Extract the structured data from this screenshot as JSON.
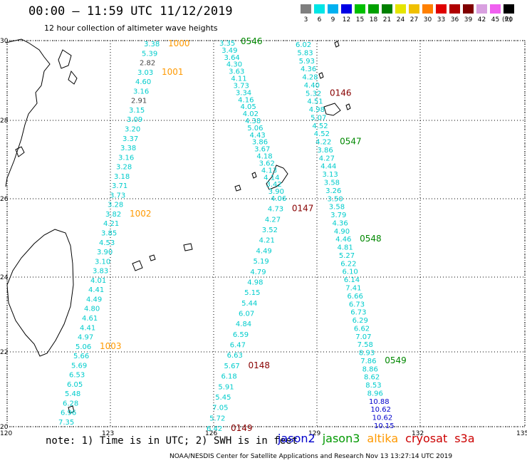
{
  "header": {
    "title": "00:00 — 11:59 UTC 11/12/2019",
    "subtitle": "12 hour collection of altimeter wave heights"
  },
  "color_scale": {
    "labels": [
      "3",
      "6",
      "9",
      "12",
      "15",
      "18",
      "21",
      "24",
      "27",
      "30",
      "33",
      "36",
      "39",
      "42",
      "45",
      "70"
    ],
    "colors": [
      "#7f7f7f",
      "#00e5e5",
      "#00b0f0",
      "#0000e5",
      "#00c000",
      "#00a000",
      "#008000",
      "#e5e500",
      "#f0c000",
      "#ff8000",
      "#e00000",
      "#b00000",
      "#800000",
      "#d9a0e0",
      "#f060f0",
      "#000000"
    ],
    "unit": "(ft)"
  },
  "axes": {
    "lat_labels": [
      "30",
      "28",
      "26",
      "24",
      "22",
      "20"
    ],
    "lon_labels": [
      "120",
      "123",
      "126",
      "129",
      "132",
      "135"
    ]
  },
  "tracks": [
    {
      "satellite": "altika",
      "color": "#00cccc",
      "values": [
        "3.38",
        "5.39",
        "2.82",
        "3.03",
        "4.60",
        "3.16",
        "2.91",
        "3.15",
        "3.09",
        "3.20",
        "3.37",
        "3.38",
        "3.16",
        "3.28",
        "3.18",
        "3.71",
        "3.73",
        "3.28",
        "3.82",
        "4.21",
        "3.85",
        "4.53",
        "3.90",
        "3.10",
        "3.83",
        "4.01",
        "4.41",
        "4.49",
        "4.80",
        "4.61",
        "4.41",
        "4.97",
        "5.06",
        "5.66",
        "5.69",
        "6.53",
        "6.05",
        "5.48",
        "6.28",
        "6.96",
        "7.35"
      ],
      "time_labels": [
        {
          "text": "1000",
          "at": 0
        },
        {
          "text": "1001",
          "at": 3
        },
        {
          "text": "1002",
          "at": 18
        },
        {
          "text": "1003",
          "at": 32
        }
      ],
      "time_color": "#ff9900"
    },
    {
      "satellite": "cryosat",
      "color": "#00cccc",
      "values": [
        "3.35",
        "3.49",
        "3.64",
        "4.30",
        "3.63",
        "4.11",
        "3.73",
        "3.34",
        "4.16",
        "4.05",
        "4.02",
        "4.38",
        "5.06",
        "4.43",
        "3.86",
        "3.67",
        "4.18",
        "3.62",
        "4.13",
        "4.14",
        "3.42",
        "3.90",
        "4.06",
        "4.73",
        "4.27",
        "3.52",
        "4.21",
        "4.49",
        "5.19",
        "4.79",
        "4.98",
        "5.15",
        "5.44",
        "6.07",
        "4.84",
        "6.59",
        "6.47",
        "6.63",
        "5.67",
        "6.18",
        "5.91",
        "5.45",
        "7.05",
        "5.72",
        "6.42"
      ],
      "time_labels": [
        {
          "text": "0147",
          "at": 23
        },
        {
          "text": "0148",
          "at": 38
        },
        {
          "text": "0149",
          "at": 44
        }
      ],
      "time_color": "#880000"
    },
    {
      "satellite": "jason3",
      "color": "#00cccc",
      "values": [
        "6.02",
        "5.83",
        "5.93",
        "4.36",
        "4.28",
        "4.40",
        "5.32",
        "4.51",
        "4.98",
        "5.07",
        "4.52",
        "4.52",
        "4.22",
        "3.86",
        "4.27",
        "4.44",
        "3.13",
        "3.58",
        "3.26",
        "3.50",
        "3.58",
        "3.79",
        "4.36",
        "4.90",
        "4.46",
        "4.81",
        "5.27",
        "6.22",
        "6.10",
        "6.14",
        "7.41",
        "6.66",
        "6.73",
        "6.73",
        "6.29",
        "6.62",
        "7.07",
        "7.58",
        "8.93",
        "7.86",
        "8.86",
        "8.62",
        "8.53",
        "8.96",
        "10.88",
        "10.62",
        "10.62",
        "10.15"
      ],
      "time_labels": [
        {
          "text": "0146",
          "at": 6
        },
        {
          "text": "0547",
          "at": 12
        },
        {
          "text": "0548",
          "at": 24
        },
        {
          "text": "0549",
          "at": 39
        }
      ],
      "time_colors": [
        "#880000",
        "#008800",
        "#008800",
        "#008800"
      ]
    }
  ],
  "header_labels": {
    "first": "0546"
  },
  "note": "note: 1) Time is in UTC; 2) SWH is in feet",
  "legend": [
    {
      "name": "jason2",
      "color": "#0000cc"
    },
    {
      "name": "jason3",
      "color": "#009900"
    },
    {
      "name": "altika",
      "color": "#ff9900"
    },
    {
      "name": "cryosat",
      "color": "#cc0000"
    },
    {
      "name": "s3a",
      "color": "#cc0000"
    }
  ],
  "credit": "NOAA/NESDIS Center for Satellite Applications and Research    Nov 13 13:27:14 UTC 2019"
}
